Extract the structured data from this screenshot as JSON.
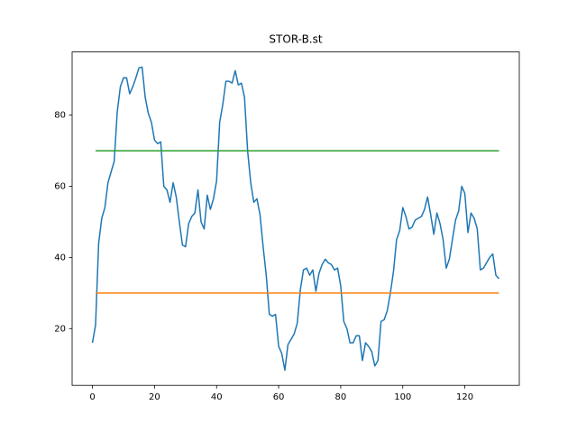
{
  "chart_data": {
    "type": "line",
    "title": "STOR-B.st",
    "xlim": [
      -6.55,
      137.55
    ],
    "ylim": [
      4.04,
      97.76
    ],
    "xticks": [
      0,
      20,
      40,
      60,
      80,
      100,
      120
    ],
    "yticks": [
      20,
      40,
      60,
      80
    ],
    "series": [
      {
        "color": "#1f77b4",
        "x": [
          0,
          1,
          2,
          3,
          4,
          5,
          6,
          7,
          8,
          9,
          10,
          11,
          12,
          13,
          14,
          15,
          16,
          17,
          18,
          19,
          20,
          21,
          22,
          23,
          24,
          25,
          26,
          27,
          28,
          29,
          30,
          31,
          32,
          33,
          34,
          35,
          36,
          37,
          38,
          39,
          40,
          41,
          42,
          43,
          44,
          45,
          46,
          47,
          48,
          49,
          50,
          51,
          52,
          53,
          54,
          55,
          56,
          57,
          58,
          59,
          60,
          61,
          62,
          63,
          64,
          65,
          66,
          67,
          68,
          69,
          70,
          71,
          72,
          73,
          74,
          75,
          76,
          77,
          78,
          79,
          80,
          81,
          82,
          83,
          84,
          85,
          86,
          87,
          88,
          89,
          90,
          91,
          92,
          93,
          94,
          95,
          96,
          97,
          98,
          99,
          100,
          101,
          102,
          103,
          104,
          105,
          106,
          107,
          108,
          109,
          110,
          111,
          112,
          113,
          114,
          115,
          116,
          117,
          118,
          119,
          120,
          121,
          122,
          123,
          124,
          125,
          126,
          127,
          128,
          129,
          130,
          131
        ],
        "values": [
          16,
          21,
          44,
          51,
          54,
          61,
          64,
          67,
          81,
          88,
          90.5,
          90.5,
          86,
          88,
          90.5,
          93.3,
          93.5,
          85,
          80.5,
          78,
          73,
          72,
          72.5,
          60,
          59,
          55.5,
          61,
          57,
          50,
          43.5,
          43,
          49.5,
          51.5,
          52.5,
          59,
          50,
          48,
          57.5,
          53.5,
          56.5,
          61.5,
          78,
          83,
          89.5,
          89.5,
          89,
          92.5,
          88.5,
          89,
          85,
          70,
          61,
          55.5,
          56.5,
          52,
          43,
          35,
          24,
          23.5,
          24,
          15,
          13,
          8.3,
          15.5,
          17,
          18.5,
          21.5,
          31,
          36.5,
          37,
          35,
          36.5,
          30.5,
          35.5,
          38,
          39.5,
          38.5,
          38,
          36.5,
          37,
          32,
          22,
          20,
          16,
          16,
          18,
          18,
          11,
          16,
          15,
          13.5,
          9.5,
          11,
          22,
          22.5,
          25,
          30,
          36,
          45,
          47.5,
          54,
          51.5,
          48,
          48.5,
          50.5,
          51,
          51.5,
          53.5,
          57,
          52,
          46.5,
          52.5,
          49.5,
          45,
          37,
          39.5,
          45,
          50.5,
          53,
          60,
          58,
          47,
          52.5,
          51,
          48,
          36.5,
          37,
          38.5,
          40,
          41,
          35,
          34
        ]
      },
      {
        "color": "#ff7f0e",
        "x": [
          1,
          131
        ],
        "values": [
          30,
          30
        ]
      },
      {
        "color": "#2ca02c",
        "x": [
          1,
          131
        ],
        "values": [
          70,
          70
        ]
      }
    ]
  }
}
